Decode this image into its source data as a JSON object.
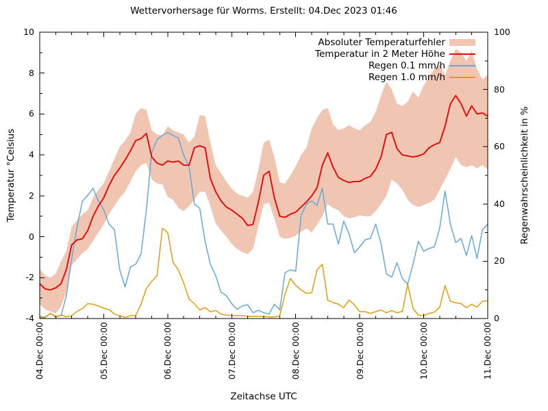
{
  "title": "Wettervorhersage für Worms. Erstellt: 04.Dec 2023 01:46",
  "axes": {
    "x": {
      "label": "Zeitachse UTC",
      "tick_labels": [
        "04.Dec 00:00",
        "05.Dec 00:00",
        "06.Dec 00:00",
        "07.Dec 00:00",
        "08.Dec 00:00",
        "09.Dec 00:00",
        "10.Dec 00:00",
        "11.Dec 00:00"
      ],
      "major_step_hours": 24,
      "minor_step_hours": 6,
      "range_hours": 168
    },
    "y_left": {
      "label": "Temperatur °Celsius",
      "min": -4,
      "max": 10,
      "ticks": [
        10,
        8,
        6,
        4,
        2,
        0,
        -2,
        -4
      ],
      "minor_step": 1
    },
    "y_right": {
      "label": "Regenwahrscheinlichkeit in %",
      "min": 0,
      "max": 100,
      "ticks": [
        100,
        80,
        60,
        40,
        20,
        0
      ],
      "minor_step": 10
    }
  },
  "legend": {
    "items": [
      {
        "label": "Absoluter Temperaturfehler",
        "swatch": "band"
      },
      {
        "label": "Temperatur in 2 Meter Höhe",
        "swatch": "line"
      },
      {
        "label": "Regen 0.1 mm/h",
        "swatch": "line"
      },
      {
        "label": "Regen 1.0 mm/h",
        "swatch": "line"
      }
    ]
  },
  "colors": {
    "band": "#f0c6b2",
    "temperature": "#e10e0e",
    "rain01": "#62a8d8",
    "rain10": "#e39c08",
    "axis": "#000000",
    "background": "#ffffff"
  },
  "chart_data": {
    "type": "line",
    "title": "Wettervorhersage für Worms. Erstellt: 04.Dec 2023 01:46",
    "xlabel": "Zeitachse UTC",
    "x_start": "04.Dec 00:00 UTC",
    "x_step_hours": 2,
    "x_range_hours": 168,
    "ylabel_left": "Temperatur °Celsius",
    "ylabel_right": "Regenwahrscheinlichkeit in %",
    "ylim_left": [
      -4,
      10
    ],
    "ylim_right": [
      0,
      100
    ],
    "grid": false,
    "legend_position": "top-right-inside",
    "series": [
      {
        "name": "Absoluter Temperaturfehler",
        "type": "band",
        "axis": "left",
        "color": "#f0c6b2",
        "upper": [
          -1.6,
          -1.9,
          -2.0,
          -1.8,
          -1.2,
          -0.7,
          0.5,
          0.8,
          1.1,
          1.3,
          1.9,
          2.3,
          2.6,
          3.2,
          3.8,
          4.4,
          4.7,
          5.1,
          6.0,
          6.3,
          6.2,
          5.2,
          5.0,
          4.95,
          5.4,
          5.2,
          5.1,
          5.0,
          4.6,
          4.9,
          5.95,
          5.9,
          4.6,
          3.5,
          3.1,
          2.7,
          2.35,
          2.1,
          2.0,
          1.9,
          2.2,
          3.3,
          4.6,
          4.75,
          3.9,
          2.65,
          2.6,
          3.0,
          3.45,
          4.0,
          4.35,
          5.3,
          5.8,
          6.2,
          6.3,
          5.5,
          5.2,
          5.3,
          5.45,
          5.3,
          5.2,
          5.45,
          5.6,
          6.1,
          6.9,
          7.6,
          7.2,
          6.5,
          6.4,
          6.6,
          7.1,
          6.8,
          7.4,
          7.8,
          8.2,
          8.4,
          7.9,
          8.6,
          9.2,
          9.0,
          8.6,
          9.1,
          8.2,
          7.7,
          7.9
        ],
        "lower": [
          -3.3,
          -3.55,
          -3.65,
          -3.75,
          -3.4,
          -2.7,
          -1.4,
          -1.1,
          -0.8,
          -0.6,
          -0.2,
          0.2,
          0.6,
          1.1,
          1.5,
          1.9,
          2.2,
          2.7,
          3.2,
          3.5,
          3.6,
          2.8,
          2.6,
          2.55,
          1.95,
          1.8,
          1.4,
          1.25,
          1.5,
          1.8,
          2.2,
          2.2,
          1.5,
          0.65,
          0.3,
          0.0,
          -0.35,
          -0.6,
          -0.75,
          -0.85,
          -0.6,
          0.5,
          1.6,
          1.65,
          0.9,
          0.0,
          -0.1,
          -0.05,
          0.05,
          0.25,
          0.4,
          0.2,
          0.6,
          1.0,
          1.6,
          1.4,
          1.3,
          1.0,
          0.9,
          0.95,
          1.05,
          1.0,
          1.0,
          1.25,
          1.6,
          2.0,
          2.8,
          2.6,
          2.3,
          1.8,
          1.55,
          1.45,
          1.55,
          1.65,
          1.8,
          2.3,
          2.8,
          3.3,
          3.9,
          3.5,
          3.4,
          3.5,
          3.35,
          3.5,
          3.3
        ]
      },
      {
        "name": "Temperatur in 2 Meter Höhe",
        "type": "line",
        "axis": "left",
        "color": "#e10e0e",
        "unit": "°C",
        "values": [
          -2.3,
          -2.55,
          -2.6,
          -2.5,
          -2.3,
          -1.6,
          -0.4,
          -0.15,
          -0.1,
          0.3,
          1.0,
          1.5,
          1.9,
          2.5,
          3.0,
          3.35,
          3.75,
          4.2,
          4.7,
          4.8,
          5.05,
          3.9,
          3.6,
          3.5,
          3.7,
          3.65,
          3.7,
          3.5,
          3.5,
          4.35,
          4.45,
          4.35,
          2.85,
          2.2,
          1.75,
          1.45,
          1.3,
          1.1,
          0.9,
          0.55,
          0.6,
          1.7,
          3.0,
          3.2,
          1.9,
          1.0,
          0.95,
          1.1,
          1.2,
          1.45,
          1.7,
          2.0,
          2.4,
          3.5,
          4.1,
          3.4,
          2.9,
          2.75,
          2.65,
          2.7,
          2.7,
          2.85,
          2.95,
          3.3,
          3.9,
          5.0,
          5.1,
          4.3,
          4.0,
          3.95,
          3.9,
          3.95,
          4.05,
          4.35,
          4.5,
          4.6,
          5.4,
          6.5,
          6.9,
          6.5,
          5.9,
          6.4,
          6.0,
          6.05,
          5.9
        ]
      },
      {
        "name": "Regen 0.1 mm/h",
        "type": "line",
        "axis": "right",
        "color": "#62a8d8",
        "unit": "%",
        "values": [
          0.7,
          0.5,
          1.8,
          0.8,
          1.0,
          8,
          21,
          32,
          41,
          43,
          45.5,
          41,
          38,
          33,
          31,
          17,
          11,
          18,
          19,
          22.5,
          38,
          58,
          62.5,
          64,
          65,
          64,
          63,
          57,
          53,
          40,
          38.5,
          27,
          19,
          15,
          9.2,
          8,
          5.2,
          3.2,
          4.4,
          4.8,
          2.0,
          2.9,
          2.0,
          1.6,
          5.0,
          3.0,
          16,
          17,
          16.5,
          36,
          40,
          41,
          39.5,
          45.5,
          33,
          33,
          26,
          34,
          29.5,
          23,
          25,
          27.5,
          28,
          33,
          26,
          15.6,
          14.5,
          19.5,
          14,
          12,
          19,
          27,
          23.5,
          24.5,
          25,
          31.5,
          44.5,
          33,
          26.5,
          28,
          22,
          29,
          21,
          31,
          33
        ]
      },
      {
        "name": "Regen 1.0 mm/h",
        "type": "line",
        "axis": "right",
        "color": "#e39c08",
        "unit": "%",
        "values": [
          0.3,
          0.3,
          1.8,
          0.5,
          1.2,
          0.6,
          1.0,
          2.5,
          3.5,
          5.2,
          5.0,
          4.4,
          3.6,
          3.1,
          1.6,
          1.0,
          0.4,
          1.0,
          1.1,
          5.0,
          10.5,
          13,
          15,
          31.5,
          30,
          19.6,
          17,
          12.4,
          6.8,
          5.2,
          3.0,
          3.8,
          2.4,
          2.8,
          1.5,
          1.2,
          1.0,
          1.0,
          1.0,
          0.8,
          0.8,
          0.8,
          0.8,
          0.5,
          0.5,
          1.0,
          8.5,
          14,
          11.6,
          10,
          8.8,
          9,
          17,
          19,
          6.4,
          5.6,
          5.0,
          3.8,
          6.4,
          4.8,
          2.4,
          2.4,
          1.8,
          2.4,
          3.0,
          2.0,
          2.8,
          2.0,
          2.5,
          11.9,
          3.5,
          1.2,
          1.0,
          1.8,
          2.2,
          4.0,
          11.5,
          6.0,
          5.5,
          5.2,
          3.8,
          5.0,
          4.0,
          6.0,
          6.2
        ]
      }
    ]
  }
}
